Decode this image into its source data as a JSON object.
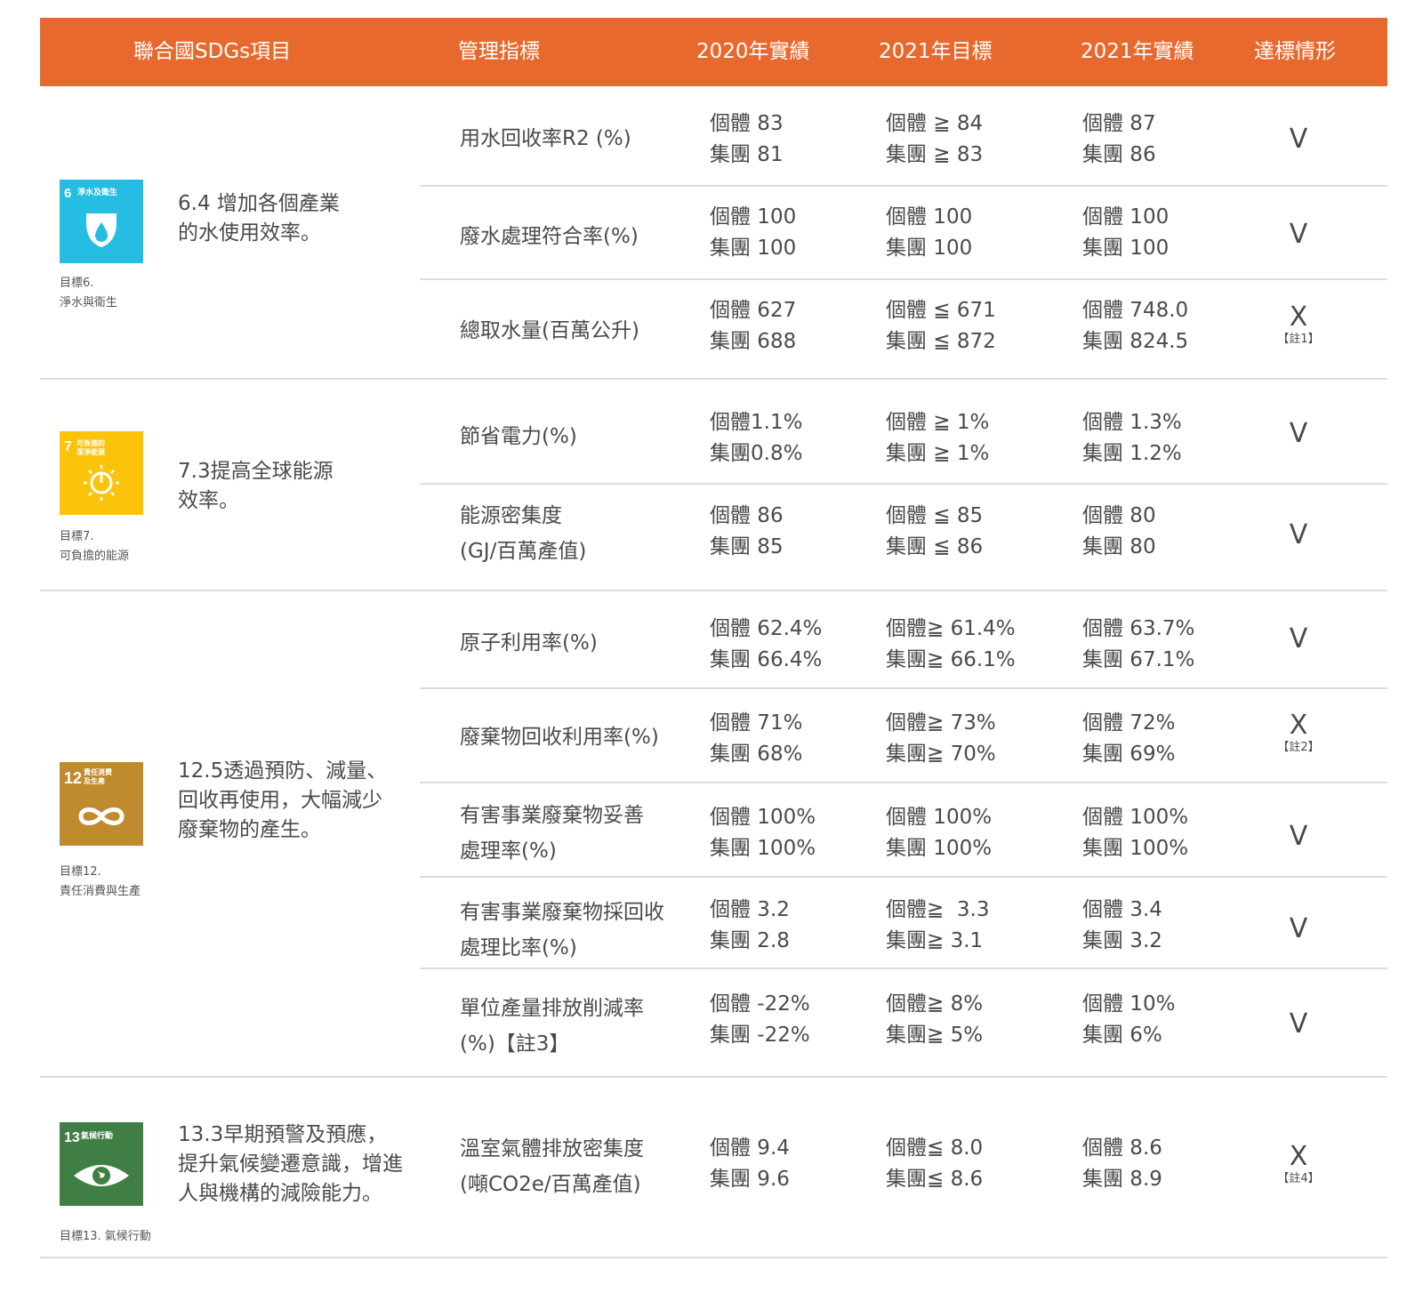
{
  "header": {
    "col_sdg": "聯合國SDGs項目",
    "col_indicator": "管理指標",
    "col_2020": "2020年實績",
    "col_2021_target": "2021年目標",
    "col_2021_actual": "2021年實績",
    "col_status": "達標情形"
  },
  "colors": {
    "header_bg": "#E8692E",
    "sdg6": "#26BDE2",
    "sdg7": "#FCC30B",
    "sdg12": "#BF8B2E",
    "sdg13": "#3F7E44"
  },
  "goals": [
    {
      "icon_num": "6",
      "icon_title": "淨水及衛生",
      "icon": "water-drop-icon",
      "label": "目標6.\n淨水與衛生",
      "target": "6.4 增加各個產業\n的水使用效率。"
    },
    {
      "icon_num": "7",
      "icon_title": "可負擔的\n潔淨能源",
      "icon": "sun-power-icon",
      "label": "目標7.\n可負擔的能源",
      "target": "7.3提高全球能源\n效率。"
    },
    {
      "icon_num": "12",
      "icon_title": "責任消費\n及生產",
      "icon": "infinity-icon",
      "label": "目標12.\n責任消費與生產",
      "target": "12.5透過預防、減量、\n回收再使用，大幅減少\n廢棄物的產生。"
    },
    {
      "icon_num": "13",
      "icon_title": "氣候行動",
      "icon": "eye-globe-icon",
      "label": "目標13. 氣候行動",
      "target": "13.3早期預警及預應，\n提升氣候變遷意識，增進\n人與機構的減險能力。"
    }
  ],
  "rows": [
    {
      "indicator": "用水回收率R2 (%)",
      "y2020": "個體 83\n集團 81",
      "t2021": "個體 ≧ 84\n集團 ≧ 83",
      "a2021": "個體 87\n集團 86",
      "status": "V",
      "note": ""
    },
    {
      "indicator": "廢水處理符合率(%)",
      "y2020": "個體 100\n集團 100",
      "t2021": "個體 100\n集團 100",
      "a2021": "個體 100\n集團 100",
      "status": "V",
      "note": ""
    },
    {
      "indicator": "總取水量(百萬公升)",
      "y2020": "個體 627\n集團 688",
      "t2021": "個體 ≦ 671\n集團 ≦ 872",
      "a2021": "個體 748.0\n集團 824.5",
      "status": "X",
      "note": "【註1】"
    },
    {
      "indicator": "節省電力(%)",
      "y2020": "個體1.1%\n集團0.8%",
      "t2021": "個體 ≧ 1%\n集團 ≧ 1%",
      "a2021": "個體 1.3%\n集團 1.2%",
      "status": "V",
      "note": ""
    },
    {
      "indicator": "能源密集度\n(GJ/百萬產值)",
      "y2020": "個體 86\n集團 85",
      "t2021": "個體 ≦ 85\n集團 ≦ 86",
      "a2021": "個體 80\n集團 80",
      "status": "V",
      "note": ""
    },
    {
      "indicator": "原子利用率(%)",
      "y2020": "個體 62.4%\n集團 66.4%",
      "t2021": "個體≧ 61.4%\n集團≧ 66.1%",
      "a2021": "個體 63.7%\n集團 67.1%",
      "status": "V",
      "note": ""
    },
    {
      "indicator": "廢棄物回收利用率(%)",
      "y2020": "個體 71%\n集團 68%",
      "t2021": "個體≧ 73%\n集團≧ 70%",
      "a2021": "個體 72%\n集團 69%",
      "status": "X",
      "note": "【註2】"
    },
    {
      "indicator": "有害事業廢棄物妥善\n處理率(%)",
      "y2020": "個體 100%\n集團 100%",
      "t2021": "個體 100%\n集團 100%",
      "a2021": "個體 100%\n集團 100%",
      "status": "V",
      "note": ""
    },
    {
      "indicator": "有害事業廢棄物採回收\n處理比率(%)",
      "y2020": "個體 3.2\n集團 2.8",
      "t2021": "個體≧  3.3\n集團≧ 3.1",
      "a2021": "個體 3.4\n集團 3.2",
      "status": "V",
      "note": ""
    },
    {
      "indicator": "單位產量排放削減率\n(%)【註3】",
      "y2020": "個體 -22%\n集團 -22%",
      "t2021": "個體≧ 8%\n集團≧ 5%",
      "a2021": "個體 10%\n集團 6%",
      "status": "V",
      "note": ""
    },
    {
      "indicator": "溫室氣體排放密集度\n(噸CO2e/百萬產值)",
      "y2020": "個體 9.4\n集團 9.6",
      "t2021": "個體≦ 8.0\n集團≦ 8.6",
      "a2021": "個體 8.6\n集團 8.9",
      "status": "X",
      "note": "【註4】"
    }
  ]
}
